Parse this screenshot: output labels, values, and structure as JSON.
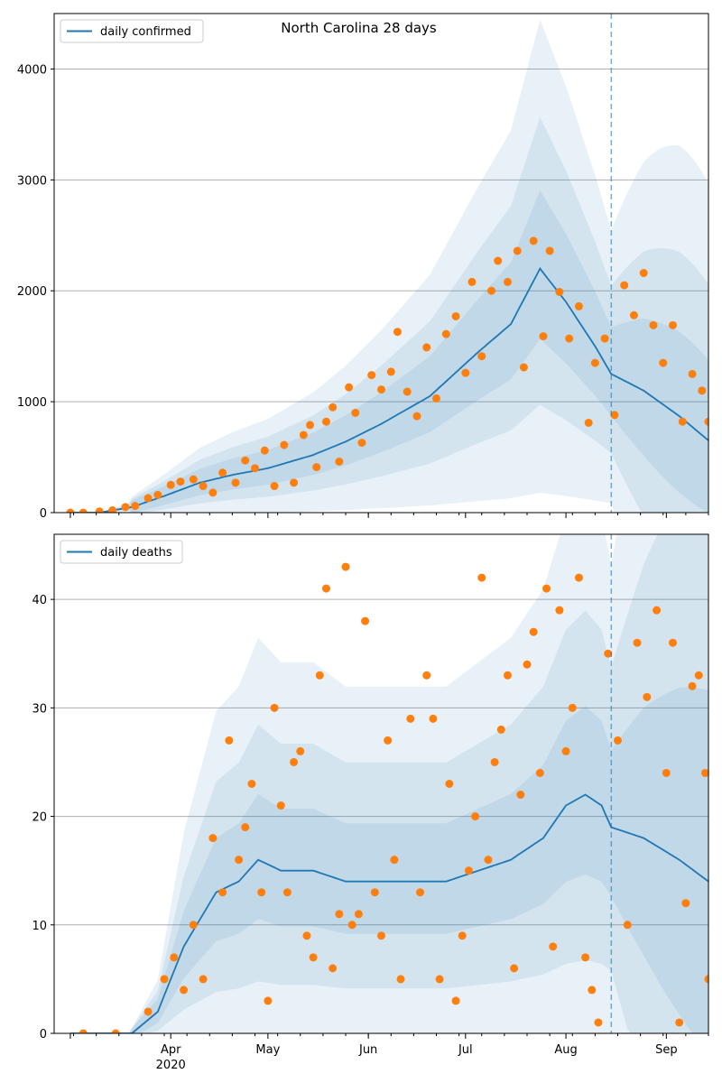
{
  "chart_data": [
    {
      "type": "line",
      "title": "North Carolina 28 days",
      "legend": [
        "daily confirmed"
      ],
      "legend_position": "top-left",
      "grid": "y",
      "x_range": [
        "2020-02-25",
        "2020-09-14"
      ],
      "ylim": [
        0,
        4500
      ],
      "yticks": [
        0,
        1000,
        2000,
        3000,
        4000
      ],
      "forecast_start": "2020-08-15",
      "colors": {
        "model": "#1f77b4",
        "observed": "#ff7f0e",
        "band": "#1f77b4"
      },
      "model_points": [
        [
          "2020-03-01",
          0
        ],
        [
          "2020-03-10",
          0
        ],
        [
          "2020-03-20",
          50
        ],
        [
          "2020-03-30",
          150
        ],
        [
          "2020-04-10",
          270
        ],
        [
          "2020-04-20",
          340
        ],
        [
          "2020-05-01",
          400
        ],
        [
          "2020-05-15",
          520
        ],
        [
          "2020-05-25",
          640
        ],
        [
          "2020-06-05",
          800
        ],
        [
          "2020-06-20",
          1050
        ],
        [
          "2020-07-05",
          1450
        ],
        [
          "2020-07-15",
          1700
        ],
        [
          "2020-07-24",
          2200
        ],
        [
          "2020-08-01",
          1900
        ],
        [
          "2020-08-10",
          1500
        ],
        [
          "2020-08-15",
          1250
        ],
        [
          "2020-08-25",
          1100
        ],
        [
          "2020-09-05",
          870
        ],
        [
          "2020-09-14",
          650
        ]
      ],
      "band_scale": [
        0.3,
        0.6,
        1.0
      ],
      "observed": [
        [
          "2020-03-01",
          0
        ],
        [
          "2020-03-05",
          0
        ],
        [
          "2020-03-10",
          10
        ],
        [
          "2020-03-14",
          20
        ],
        [
          "2020-03-18",
          50
        ],
        [
          "2020-03-21",
          60
        ],
        [
          "2020-03-25",
          130
        ],
        [
          "2020-03-28",
          160
        ],
        [
          "2020-04-01",
          250
        ],
        [
          "2020-04-04",
          280
        ],
        [
          "2020-04-08",
          300
        ],
        [
          "2020-04-11",
          240
        ],
        [
          "2020-04-14",
          180
        ],
        [
          "2020-04-17",
          360
        ],
        [
          "2020-04-21",
          270
        ],
        [
          "2020-04-24",
          470
        ],
        [
          "2020-04-27",
          400
        ],
        [
          "2020-04-30",
          560
        ],
        [
          "2020-05-03",
          240
        ],
        [
          "2020-05-06",
          610
        ],
        [
          "2020-05-09",
          270
        ],
        [
          "2020-05-12",
          700
        ],
        [
          "2020-05-14",
          790
        ],
        [
          "2020-05-16",
          410
        ],
        [
          "2020-05-19",
          820
        ],
        [
          "2020-05-21",
          950
        ],
        [
          "2020-05-23",
          460
        ],
        [
          "2020-05-26",
          1130
        ],
        [
          "2020-05-28",
          900
        ],
        [
          "2020-05-30",
          630
        ],
        [
          "2020-06-02",
          1240
        ],
        [
          "2020-06-05",
          1110
        ],
        [
          "2020-06-08",
          1270
        ],
        [
          "2020-06-10",
          1630
        ],
        [
          "2020-06-13",
          1090
        ],
        [
          "2020-06-16",
          870
        ],
        [
          "2020-06-19",
          1490
        ],
        [
          "2020-06-22",
          1030
        ],
        [
          "2020-06-25",
          1610
        ],
        [
          "2020-06-28",
          1770
        ],
        [
          "2020-07-01",
          1260
        ],
        [
          "2020-07-03",
          2080
        ],
        [
          "2020-07-06",
          1410
        ],
        [
          "2020-07-09",
          2000
        ],
        [
          "2020-07-11",
          2270
        ],
        [
          "2020-07-14",
          2080
        ],
        [
          "2020-07-17",
          2360
        ],
        [
          "2020-07-19",
          1310
        ],
        [
          "2020-07-22",
          2450
        ],
        [
          "2020-07-25",
          1590
        ],
        [
          "2020-07-27",
          2360
        ],
        [
          "2020-07-30",
          1990
        ],
        [
          "2020-08-02",
          1570
        ],
        [
          "2020-08-05",
          1860
        ],
        [
          "2020-08-08",
          810
        ],
        [
          "2020-08-10",
          1350
        ],
        [
          "2020-08-13",
          1570
        ],
        [
          "2020-08-16",
          880
        ],
        [
          "2020-08-19",
          2050
        ],
        [
          "2020-08-22",
          1780
        ],
        [
          "2020-08-25",
          2160
        ],
        [
          "2020-08-28",
          1690
        ],
        [
          "2020-08-31",
          1350
        ],
        [
          "2020-09-03",
          1690
        ],
        [
          "2020-09-06",
          820
        ],
        [
          "2020-09-09",
          1250
        ],
        [
          "2020-09-12",
          1100
        ],
        [
          "2020-09-14",
          820
        ]
      ]
    },
    {
      "type": "line",
      "title": "",
      "legend": [
        "daily deaths"
      ],
      "legend_position": "top-left",
      "grid": "y",
      "x_range": [
        "2020-02-25",
        "2020-09-14"
      ],
      "ylim": [
        0,
        46
      ],
      "yticks": [
        0,
        10,
        20,
        30,
        40
      ],
      "xtick_labels": [
        "Apr\n2020",
        "May",
        "Jun",
        "Jul",
        "Aug",
        "Sep"
      ],
      "forecast_start": "2020-08-15",
      "colors": {
        "model": "#1f77b4",
        "observed": "#ff7f0e",
        "band": "#1f77b4"
      },
      "model_points": [
        [
          "2020-03-01",
          0
        ],
        [
          "2020-03-20",
          0
        ],
        [
          "2020-03-28",
          2
        ],
        [
          "2020-04-05",
          8
        ],
        [
          "2020-04-15",
          13
        ],
        [
          "2020-04-22",
          14
        ],
        [
          "2020-04-28",
          16
        ],
        [
          "2020-05-05",
          15
        ],
        [
          "2020-05-15",
          15
        ],
        [
          "2020-05-25",
          14
        ],
        [
          "2020-06-10",
          14
        ],
        [
          "2020-06-25",
          14
        ],
        [
          "2020-07-05",
          15
        ],
        [
          "2020-07-15",
          16
        ],
        [
          "2020-07-25",
          18
        ],
        [
          "2020-08-01",
          21
        ],
        [
          "2020-08-07",
          22
        ],
        [
          "2020-08-12",
          21
        ],
        [
          "2020-08-15",
          19
        ],
        [
          "2020-08-25",
          18
        ],
        [
          "2020-09-05",
          16
        ],
        [
          "2020-09-14",
          14
        ]
      ],
      "band_scale": [
        0.35,
        0.75,
        1.25
      ],
      "observed": [
        [
          "2020-03-05",
          0
        ],
        [
          "2020-03-15",
          0
        ],
        [
          "2020-03-25",
          2
        ],
        [
          "2020-03-30",
          5
        ],
        [
          "2020-04-02",
          7
        ],
        [
          "2020-04-05",
          4
        ],
        [
          "2020-04-08",
          10
        ],
        [
          "2020-04-11",
          5
        ],
        [
          "2020-04-14",
          18
        ],
        [
          "2020-04-17",
          13
        ],
        [
          "2020-04-19",
          27
        ],
        [
          "2020-04-22",
          16
        ],
        [
          "2020-04-24",
          19
        ],
        [
          "2020-04-26",
          23
        ],
        [
          "2020-04-29",
          13
        ],
        [
          "2020-05-01",
          3
        ],
        [
          "2020-05-03",
          30
        ],
        [
          "2020-05-05",
          21
        ],
        [
          "2020-05-07",
          13
        ],
        [
          "2020-05-09",
          25
        ],
        [
          "2020-05-11",
          26
        ],
        [
          "2020-05-13",
          9
        ],
        [
          "2020-05-15",
          7
        ],
        [
          "2020-05-17",
          33
        ],
        [
          "2020-05-19",
          41
        ],
        [
          "2020-05-21",
          6
        ],
        [
          "2020-05-23",
          11
        ],
        [
          "2020-05-25",
          43
        ],
        [
          "2020-05-27",
          10
        ],
        [
          "2020-05-29",
          11
        ],
        [
          "2020-05-31",
          38
        ],
        [
          "2020-06-03",
          13
        ],
        [
          "2020-06-05",
          9
        ],
        [
          "2020-06-07",
          27
        ],
        [
          "2020-06-09",
          16
        ],
        [
          "2020-06-11",
          5
        ],
        [
          "2020-06-14",
          29
        ],
        [
          "2020-06-17",
          13
        ],
        [
          "2020-06-19",
          33
        ],
        [
          "2020-06-21",
          29
        ],
        [
          "2020-06-23",
          5
        ],
        [
          "2020-06-26",
          23
        ],
        [
          "2020-06-28",
          3
        ],
        [
          "2020-06-30",
          9
        ],
        [
          "2020-07-02",
          15
        ],
        [
          "2020-07-04",
          20
        ],
        [
          "2020-07-06",
          42
        ],
        [
          "2020-07-08",
          16
        ],
        [
          "2020-07-10",
          25
        ],
        [
          "2020-07-12",
          28
        ],
        [
          "2020-07-14",
          33
        ],
        [
          "2020-07-16",
          6
        ],
        [
          "2020-07-18",
          22
        ],
        [
          "2020-07-20",
          34
        ],
        [
          "2020-07-22",
          37
        ],
        [
          "2020-07-24",
          24
        ],
        [
          "2020-07-26",
          41
        ],
        [
          "2020-07-28",
          8
        ],
        [
          "2020-07-30",
          39
        ],
        [
          "2020-08-01",
          26
        ],
        [
          "2020-08-03",
          30
        ],
        [
          "2020-08-05",
          42
        ],
        [
          "2020-08-07",
          7
        ],
        [
          "2020-08-09",
          4
        ],
        [
          "2020-08-11",
          1
        ],
        [
          "2020-08-14",
          35
        ],
        [
          "2020-08-17",
          27
        ],
        [
          "2020-08-20",
          10
        ],
        [
          "2020-08-23",
          36
        ],
        [
          "2020-08-26",
          31
        ],
        [
          "2020-08-29",
          39
        ],
        [
          "2020-09-01",
          24
        ],
        [
          "2020-09-03",
          36
        ],
        [
          "2020-09-05",
          1
        ],
        [
          "2020-09-07",
          12
        ],
        [
          "2020-09-09",
          32
        ],
        [
          "2020-09-11",
          33
        ],
        [
          "2020-09-13",
          24
        ],
        [
          "2020-09-14",
          5
        ]
      ]
    }
  ]
}
